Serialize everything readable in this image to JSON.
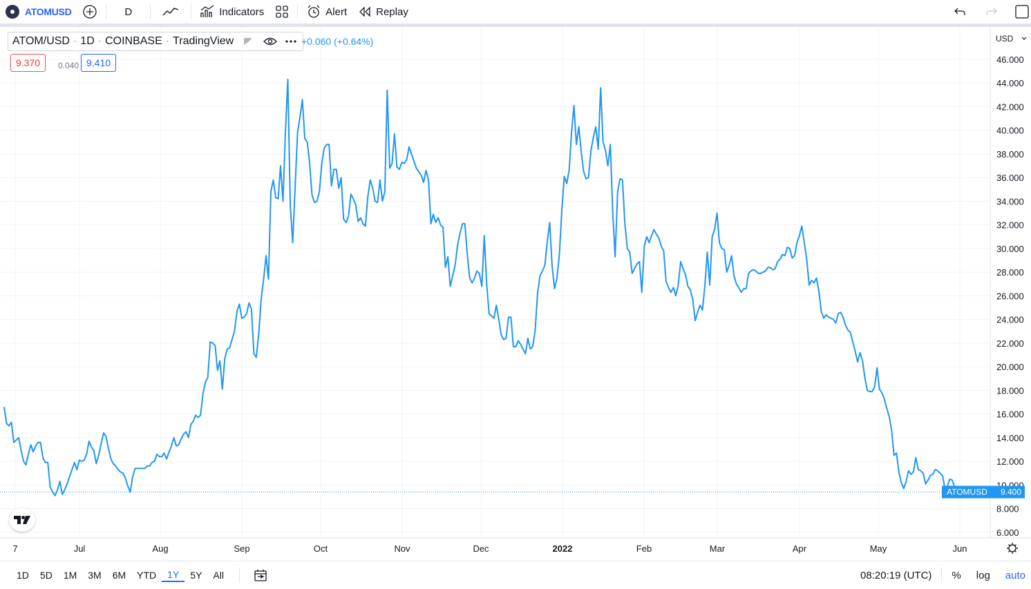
{
  "toolbar": {
    "symbol": "ATOMUSD",
    "interval": "D",
    "indicators_label": "Indicators",
    "alert_label": "Alert",
    "replay_label": "Replay"
  },
  "legend": {
    "pair": "ATOM/USD",
    "interval": "1D",
    "exchange": "COINBASE",
    "source": "TradingView",
    "change": "+0.060 (+0.64%)",
    "sell_price": "9.370",
    "spread": "0.040",
    "buy_price": "9.410"
  },
  "price_axis": {
    "currency": "USD",
    "ticks": [
      "46.000",
      "44.000",
      "42.000",
      "40.000",
      "38.000",
      "36.000",
      "34.000",
      "32.000",
      "30.000",
      "28.000",
      "26.000",
      "24.000",
      "22.000",
      "20.000",
      "18.000",
      "16.000",
      "14.000",
      "12.000",
      "10.000",
      "8.000",
      "6.000"
    ],
    "last_label": "ATOMUSD",
    "last_value": "9.400"
  },
  "time_axis": {
    "labels": [
      "7",
      "Jul",
      "Aug",
      "Sep",
      "Oct",
      "Nov",
      "Dec",
      "2022",
      "Feb",
      "Mar",
      "Apr",
      "May",
      "Jun"
    ]
  },
  "bottom": {
    "ranges": [
      "1D",
      "5D",
      "1M",
      "3M",
      "6M",
      "YTD",
      "1Y",
      "5Y",
      "All"
    ],
    "active_range": "1Y",
    "time": "08:20:19 (UTC)",
    "percent_label": "%",
    "log_label": "log",
    "auto_label": "auto"
  },
  "colors": {
    "line": "#2196f3",
    "accent": "#2962ff",
    "sell": "#ef5350"
  },
  "chart_data": {
    "type": "line",
    "series": [
      {
        "values": [
          16.6,
          15.2,
          15.0,
          15.3,
          13.6,
          13.8,
          14.0,
          12.9,
          12.0,
          11.7,
          12.6,
          13.4,
          12.8,
          13.3,
          13.6,
          13.6,
          12.3,
          11.9,
          11.9,
          9.8,
          9.4,
          9.1,
          9.6,
          10.3,
          9.2,
          9.6,
          10.1,
          10.7,
          11.3,
          11.9,
          11.3,
          12.1,
          12.0,
          12.1,
          12.6,
          13.7,
          13.2,
          12.9,
          11.8,
          12.5,
          13.5,
          14.4,
          14.1,
          13.1,
          12.2,
          11.8,
          11.6,
          11.3,
          11.1,
          11.0,
          10.6,
          9.9,
          9.4,
          10.7,
          11.4,
          11.4,
          11.4,
          11.4,
          11.4,
          11.6,
          11.6,
          11.9,
          12.0,
          12.6,
          12.4,
          12.4,
          12.7,
          12.2,
          12.8,
          13.3,
          14.0,
          13.3,
          13.4,
          13.9,
          14.3,
          14.5,
          14.0,
          15.1,
          15.4,
          15.9,
          15.7,
          15.9,
          17.7,
          18.7,
          19.1,
          22.1,
          22.0,
          21.8,
          19.7,
          20.5,
          18.1,
          20.7,
          21.5,
          21.6,
          22.3,
          23.0,
          24.7,
          25.3,
          24.1,
          24.2,
          24.5,
          25.4,
          24.9,
          21.1,
          20.8,
          22.8,
          25.7,
          27.4,
          29.4,
          27.4,
          34.8,
          35.8,
          34.3,
          34.2,
          37.0,
          34.0,
          39.8,
          44.3,
          33.6,
          30.5,
          35.2,
          39.8,
          41.1,
          42.6,
          39.3,
          39.0,
          37.2,
          34.5,
          33.9,
          34.0,
          34.8,
          37.2,
          38.5,
          38.8,
          38.8,
          35.3,
          36.7,
          36.7,
          35.1,
          36.0,
          32.5,
          32.2,
          32.7,
          34.6,
          34.2,
          33.7,
          32.3,
          32.6,
          32.1,
          31.9,
          34.4,
          35.8,
          35.1,
          34.0,
          33.9,
          35.8,
          34.0,
          34.8,
          43.4,
          36.8,
          37.2,
          39.7,
          36.9,
          36.7,
          37.3,
          37.2,
          37.5,
          38.6,
          38.0,
          37.4,
          36.8,
          36.5,
          36.2,
          35.6,
          36.6,
          35.8,
          32.1,
          32.9,
          32.2,
          32.6,
          32.0,
          31.8,
          28.4,
          29.3,
          26.8,
          27.7,
          28.6,
          30.3,
          31.3,
          32.1,
          32.1,
          29.5,
          27.5,
          27.1,
          27.5,
          28.1,
          27.9,
          26.8,
          31.1,
          27.0,
          24.5,
          24.3,
          24.1,
          25.2,
          24.0,
          22.7,
          22.3,
          22.4,
          24.2,
          24.2,
          21.7,
          21.7,
          22.2,
          21.9,
          21.5,
          21.1,
          22.4,
          21.5,
          21.7,
          23.1,
          26.3,
          27.7,
          28.1,
          28.6,
          30.6,
          32.2,
          28.5,
          26.6,
          27.5,
          29.5,
          33.2,
          36.1,
          35.5,
          36.6,
          39.8,
          42.1,
          38.8,
          40.3,
          38.2,
          36.5,
          35.9,
          36.0,
          38.3,
          39.4,
          40.3,
          38.4,
          43.6,
          39.0,
          38.3,
          37.0,
          38.8,
          33.1,
          29.3,
          34.8,
          35.9,
          35.8,
          32.1,
          30.0,
          29.7,
          27.9,
          28.3,
          28.7,
          28.9,
          26.3,
          30.2,
          31.0,
          30.5,
          31.1,
          31.6,
          31.2,
          30.9,
          30.2,
          29.8,
          27.2,
          26.7,
          26.3,
          26.7,
          26.0,
          26.9,
          28.9,
          28.3,
          27.8,
          26.8,
          26.5,
          25.7,
          23.9,
          24.6,
          25.2,
          24.8,
          26.9,
          29.7,
          26.9,
          31.0,
          31.6,
          33.0,
          30.5,
          30.0,
          29.9,
          28.0,
          28.6,
          29.4,
          27.7,
          27.0,
          26.7,
          26.3,
          26.6,
          26.6,
          27.9,
          28.1,
          28.2,
          28.1,
          27.9,
          27.9,
          28.0,
          28.1,
          28.4,
          28.4,
          28.2,
          28.3,
          28.9,
          29.1,
          29.5,
          29.4,
          30.1,
          30.0,
          29.2,
          29.4,
          30.5,
          31.1,
          31.9,
          30.5,
          29.1,
          26.9,
          27.3,
          27.1,
          27.5,
          26.4,
          24.7,
          24.1,
          24.4,
          24.2,
          24.1,
          24.0,
          23.7,
          24.5,
          24.6,
          24.2,
          23.5,
          23.1,
          22.9,
          22.1,
          21.3,
          20.4,
          21.2,
          20.5,
          19.0,
          18.0,
          17.9,
          17.9,
          18.3,
          19.9,
          18.1,
          17.8,
          17.3,
          16.5,
          15.8,
          14.6,
          12.5,
          12.7,
          11.1,
          10.2,
          9.7,
          10.3,
          11.2,
          10.9,
          11.1,
          12.3,
          11.3,
          11.2,
          11.0,
          10.1,
          10.4,
          10.8,
          10.9,
          11.3,
          11.2,
          11.0,
          10.8,
          9.7,
          9.9,
          10.5,
          10.4,
          9.8,
          9.4
        ]
      }
    ],
    "x_labels": [
      "7",
      "Jul",
      "Aug",
      "Sep",
      "Oct",
      "Nov",
      "Dec",
      "2022",
      "Feb",
      "Mar",
      "Apr",
      "May",
      "Jun"
    ],
    "ylim": [
      5.4,
      47.2
    ],
    "y_ticks": [
      46,
      44,
      42,
      40,
      38,
      36,
      34,
      32,
      30,
      28,
      26,
      24,
      22,
      20,
      18,
      16,
      14,
      12,
      10,
      8,
      6
    ],
    "last_value": 9.4,
    "grid": true,
    "legend": "top-left"
  }
}
